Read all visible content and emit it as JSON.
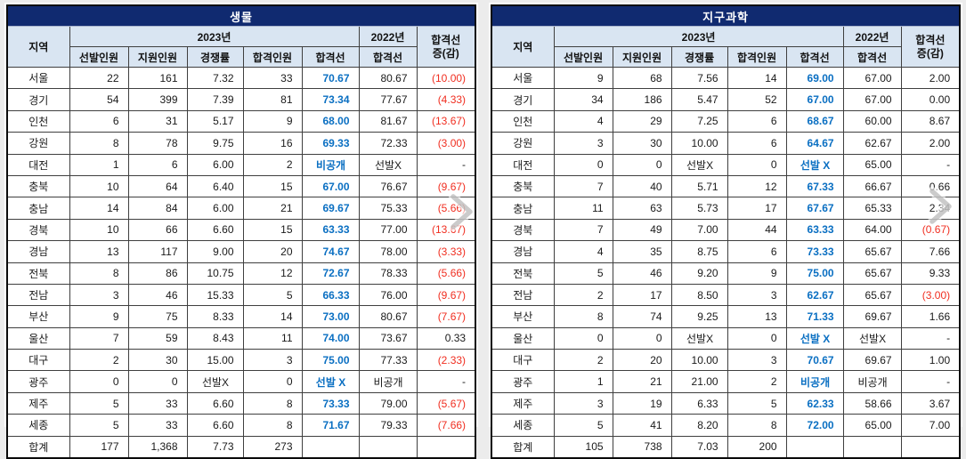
{
  "colors": {
    "title_bg": "#102a70",
    "header_bg": "#d9e5f2",
    "cutoff_blue": "#0a6fc2",
    "negative_red": "#f02e20",
    "table_border": "#0a0a0a"
  },
  "icons": {
    "next_arrow": "chevron-right"
  },
  "tables": [
    {
      "title": "생물",
      "header": {
        "region": "지역",
        "y2023": "2023년",
        "y2022": "2022년",
        "diff1": "합격선",
        "diff2": "증(감)",
        "sub": [
          "선발인원",
          "지원인원",
          "경쟁률",
          "합격인원",
          "합격선"
        ],
        "sub2022": "합격선"
      },
      "rows": [
        [
          "서울",
          "22",
          "161",
          "7.32",
          "33",
          "70.67",
          "80.67",
          "(10.00)"
        ],
        [
          "경기",
          "54",
          "399",
          "7.39",
          "81",
          "73.34",
          "77.67",
          "(4.33)"
        ],
        [
          "인천",
          "6",
          "31",
          "5.17",
          "9",
          "68.00",
          "81.67",
          "(13.67)"
        ],
        [
          "강원",
          "8",
          "78",
          "9.75",
          "16",
          "69.33",
          "72.33",
          "(3.00)"
        ],
        [
          "대전",
          "1",
          "6",
          "6.00",
          "2",
          "비공개",
          "선발X",
          "-"
        ],
        [
          "충북",
          "10",
          "64",
          "6.40",
          "15",
          "67.00",
          "76.67",
          "(9.67)"
        ],
        [
          "충남",
          "14",
          "84",
          "6.00",
          "21",
          "69.67",
          "75.33",
          "(5.66)"
        ],
        [
          "경북",
          "10",
          "66",
          "6.60",
          "15",
          "63.33",
          "77.00",
          "(13.67)"
        ],
        [
          "경남",
          "13",
          "117",
          "9.00",
          "20",
          "74.67",
          "78.00",
          "(3.33)"
        ],
        [
          "전북",
          "8",
          "86",
          "10.75",
          "12",
          "72.67",
          "78.33",
          "(5.66)"
        ],
        [
          "전남",
          "3",
          "46",
          "15.33",
          "5",
          "66.33",
          "76.00",
          "(9.67)"
        ],
        [
          "부산",
          "9",
          "75",
          "8.33",
          "14",
          "73.00",
          "80.67",
          "(7.67)"
        ],
        [
          "울산",
          "7",
          "59",
          "8.43",
          "11",
          "74.00",
          "73.67",
          "0.33"
        ],
        [
          "대구",
          "2",
          "30",
          "15.00",
          "3",
          "75.00",
          "77.33",
          "(2.33)"
        ],
        [
          "광주",
          "0",
          "0",
          "선발X",
          "0",
          "선발 X",
          "비공개",
          "-"
        ],
        [
          "제주",
          "5",
          "33",
          "6.60",
          "8",
          "73.33",
          "79.00",
          "(5.67)"
        ],
        [
          "세종",
          "5",
          "33",
          "6.60",
          "8",
          "71.67",
          "79.33",
          "(7.66)"
        ],
        [
          "합계",
          "177",
          "1,368",
          "7.73",
          "273",
          "",
          "",
          ""
        ]
      ]
    },
    {
      "title": "지구과학",
      "header": {
        "region": "지역",
        "y2023": "2023년",
        "y2022": "2022년",
        "diff1": "합격선",
        "diff2": "증(감)",
        "sub": [
          "선발인원",
          "지원인원",
          "경쟁률",
          "합격인원",
          "합격선"
        ],
        "sub2022": "합격선"
      },
      "rows": [
        [
          "서울",
          "9",
          "68",
          "7.56",
          "14",
          "69.00",
          "67.00",
          "2.00"
        ],
        [
          "경기",
          "34",
          "186",
          "5.47",
          "52",
          "67.00",
          "67.00",
          "0.00"
        ],
        [
          "인천",
          "4",
          "29",
          "7.25",
          "6",
          "68.67",
          "60.00",
          "8.67"
        ],
        [
          "강원",
          "3",
          "30",
          "10.00",
          "6",
          "64.67",
          "62.67",
          "2.00"
        ],
        [
          "대전",
          "0",
          "0",
          "선발X",
          "0",
          "선발 X",
          "65.00",
          "-"
        ],
        [
          "충북",
          "7",
          "40",
          "5.71",
          "12",
          "67.33",
          "66.67",
          "0.66"
        ],
        [
          "충남",
          "11",
          "63",
          "5.73",
          "17",
          "67.67",
          "65.33",
          "2.34"
        ],
        [
          "경북",
          "7",
          "49",
          "7.00",
          "44",
          "63.33",
          "64.00",
          "(0.67)"
        ],
        [
          "경남",
          "4",
          "35",
          "8.75",
          "6",
          "73.33",
          "65.67",
          "7.66"
        ],
        [
          "전북",
          "5",
          "46",
          "9.20",
          "9",
          "75.00",
          "65.67",
          "9.33"
        ],
        [
          "전남",
          "2",
          "17",
          "8.50",
          "3",
          "62.67",
          "65.67",
          "(3.00)"
        ],
        [
          "부산",
          "8",
          "74",
          "9.25",
          "13",
          "71.33",
          "69.67",
          "1.66"
        ],
        [
          "울산",
          "0",
          "0",
          "선발X",
          "0",
          "선발 X",
          "선발X",
          "-"
        ],
        [
          "대구",
          "2",
          "20",
          "10.00",
          "3",
          "70.67",
          "69.67",
          "1.00"
        ],
        [
          "광주",
          "1",
          "21",
          "21.00",
          "2",
          "비공개",
          "비공개",
          "-"
        ],
        [
          "제주",
          "3",
          "19",
          "6.33",
          "5",
          "62.33",
          "58.66",
          "3.67"
        ],
        [
          "세종",
          "5",
          "41",
          "8.20",
          "8",
          "72.00",
          "65.00",
          "7.00"
        ],
        [
          "합계",
          "105",
          "738",
          "7.03",
          "200",
          "",
          "",
          ""
        ]
      ]
    }
  ]
}
